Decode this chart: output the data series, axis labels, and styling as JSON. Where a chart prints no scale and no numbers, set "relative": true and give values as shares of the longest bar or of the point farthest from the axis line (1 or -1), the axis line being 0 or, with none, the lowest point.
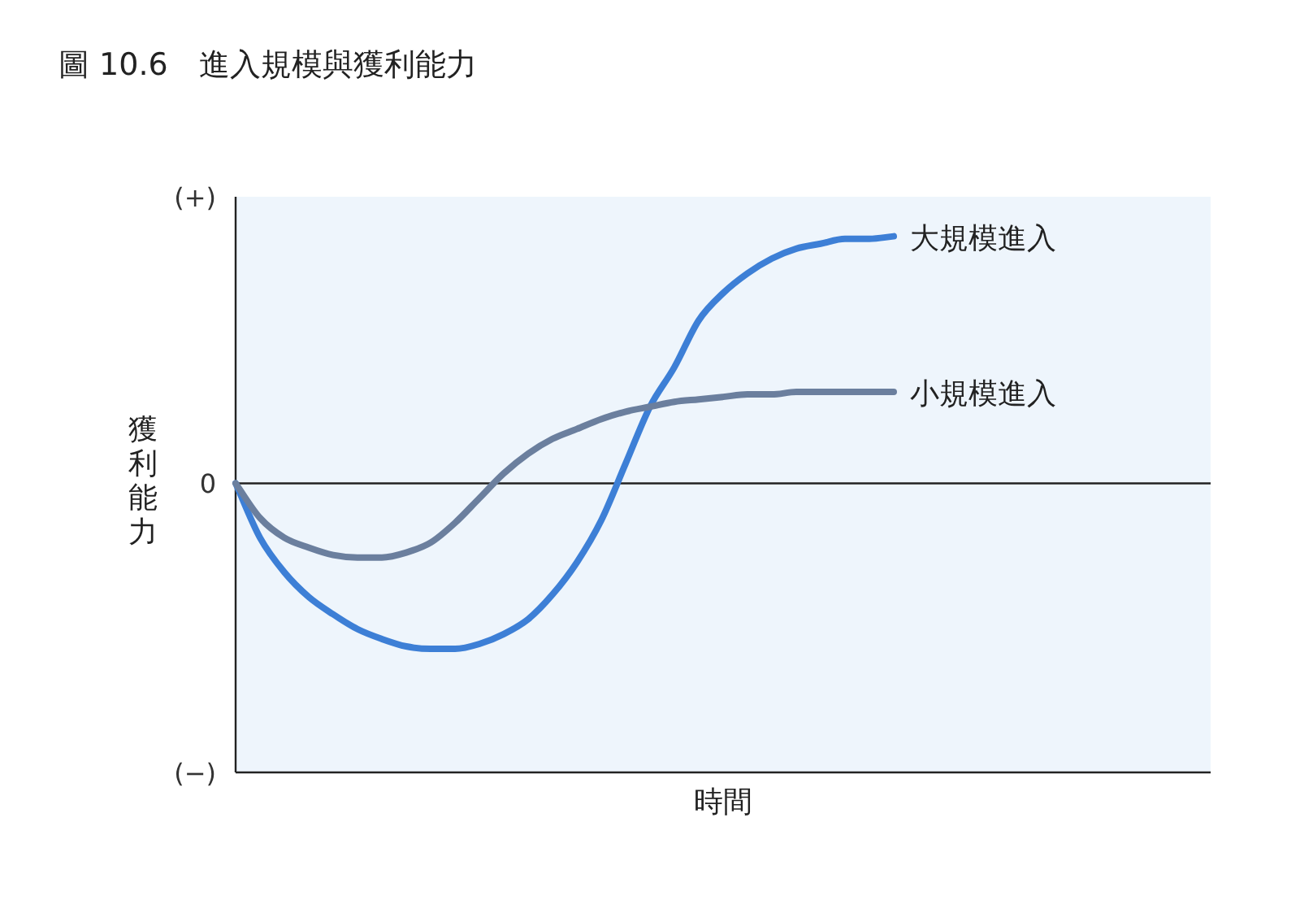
{
  "chart_data": {
    "type": "line",
    "title": "圖 10.6　進入規模與獲利能力",
    "xlabel": "時間",
    "ylabel": "獲利能力",
    "relative": true,
    "annotations": [
      "(+)",
      "0",
      "(−)"
    ],
    "categories": [
      null,
      null,
      null,
      null,
      null,
      null,
      null,
      null,
      null,
      null,
      null,
      null,
      null,
      null,
      null,
      null,
      null,
      null,
      null,
      null,
      null,
      null,
      null,
      null,
      null,
      null,
      null,
      null,
      null,
      null,
      null,
      null,
      null,
      null,
      null,
      null,
      null,
      null,
      null,
      null,
      null
    ],
    "series": [
      {
        "name": "大規模進入",
        "color": "#3d7fd6",
        "values": [
          0,
          -0.22,
          -0.36,
          -0.46,
          -0.53,
          -0.59,
          -0.63,
          -0.66,
          -0.67,
          -0.67,
          -0.65,
          -0.61,
          -0.55,
          -0.45,
          -0.32,
          -0.15,
          0.08,
          0.31,
          0.47,
          0.66,
          0.77,
          0.85,
          0.91,
          0.95,
          0.97,
          0.99,
          0.99,
          1,
          null,
          null,
          null,
          null,
          null,
          null,
          null,
          null,
          null,
          null,
          null,
          null,
          null
        ]
      },
      {
        "name": "小規模進入",
        "color": "#6b7f9e",
        "values": [
          0,
          -0.14,
          -0.22,
          -0.26,
          -0.29,
          -0.3,
          -0.3,
          -0.28,
          -0.24,
          -0.16,
          -0.06,
          0.04,
          0.12,
          0.18,
          0.22,
          0.26,
          0.29,
          0.31,
          0.33,
          0.34,
          0.35,
          0.36,
          0.36,
          0.37,
          0.37,
          0.37,
          0.37,
          0.37,
          null,
          null,
          null,
          null,
          null,
          null,
          null,
          null,
          null,
          null,
          null,
          null,
          null
        ]
      }
    ]
  }
}
